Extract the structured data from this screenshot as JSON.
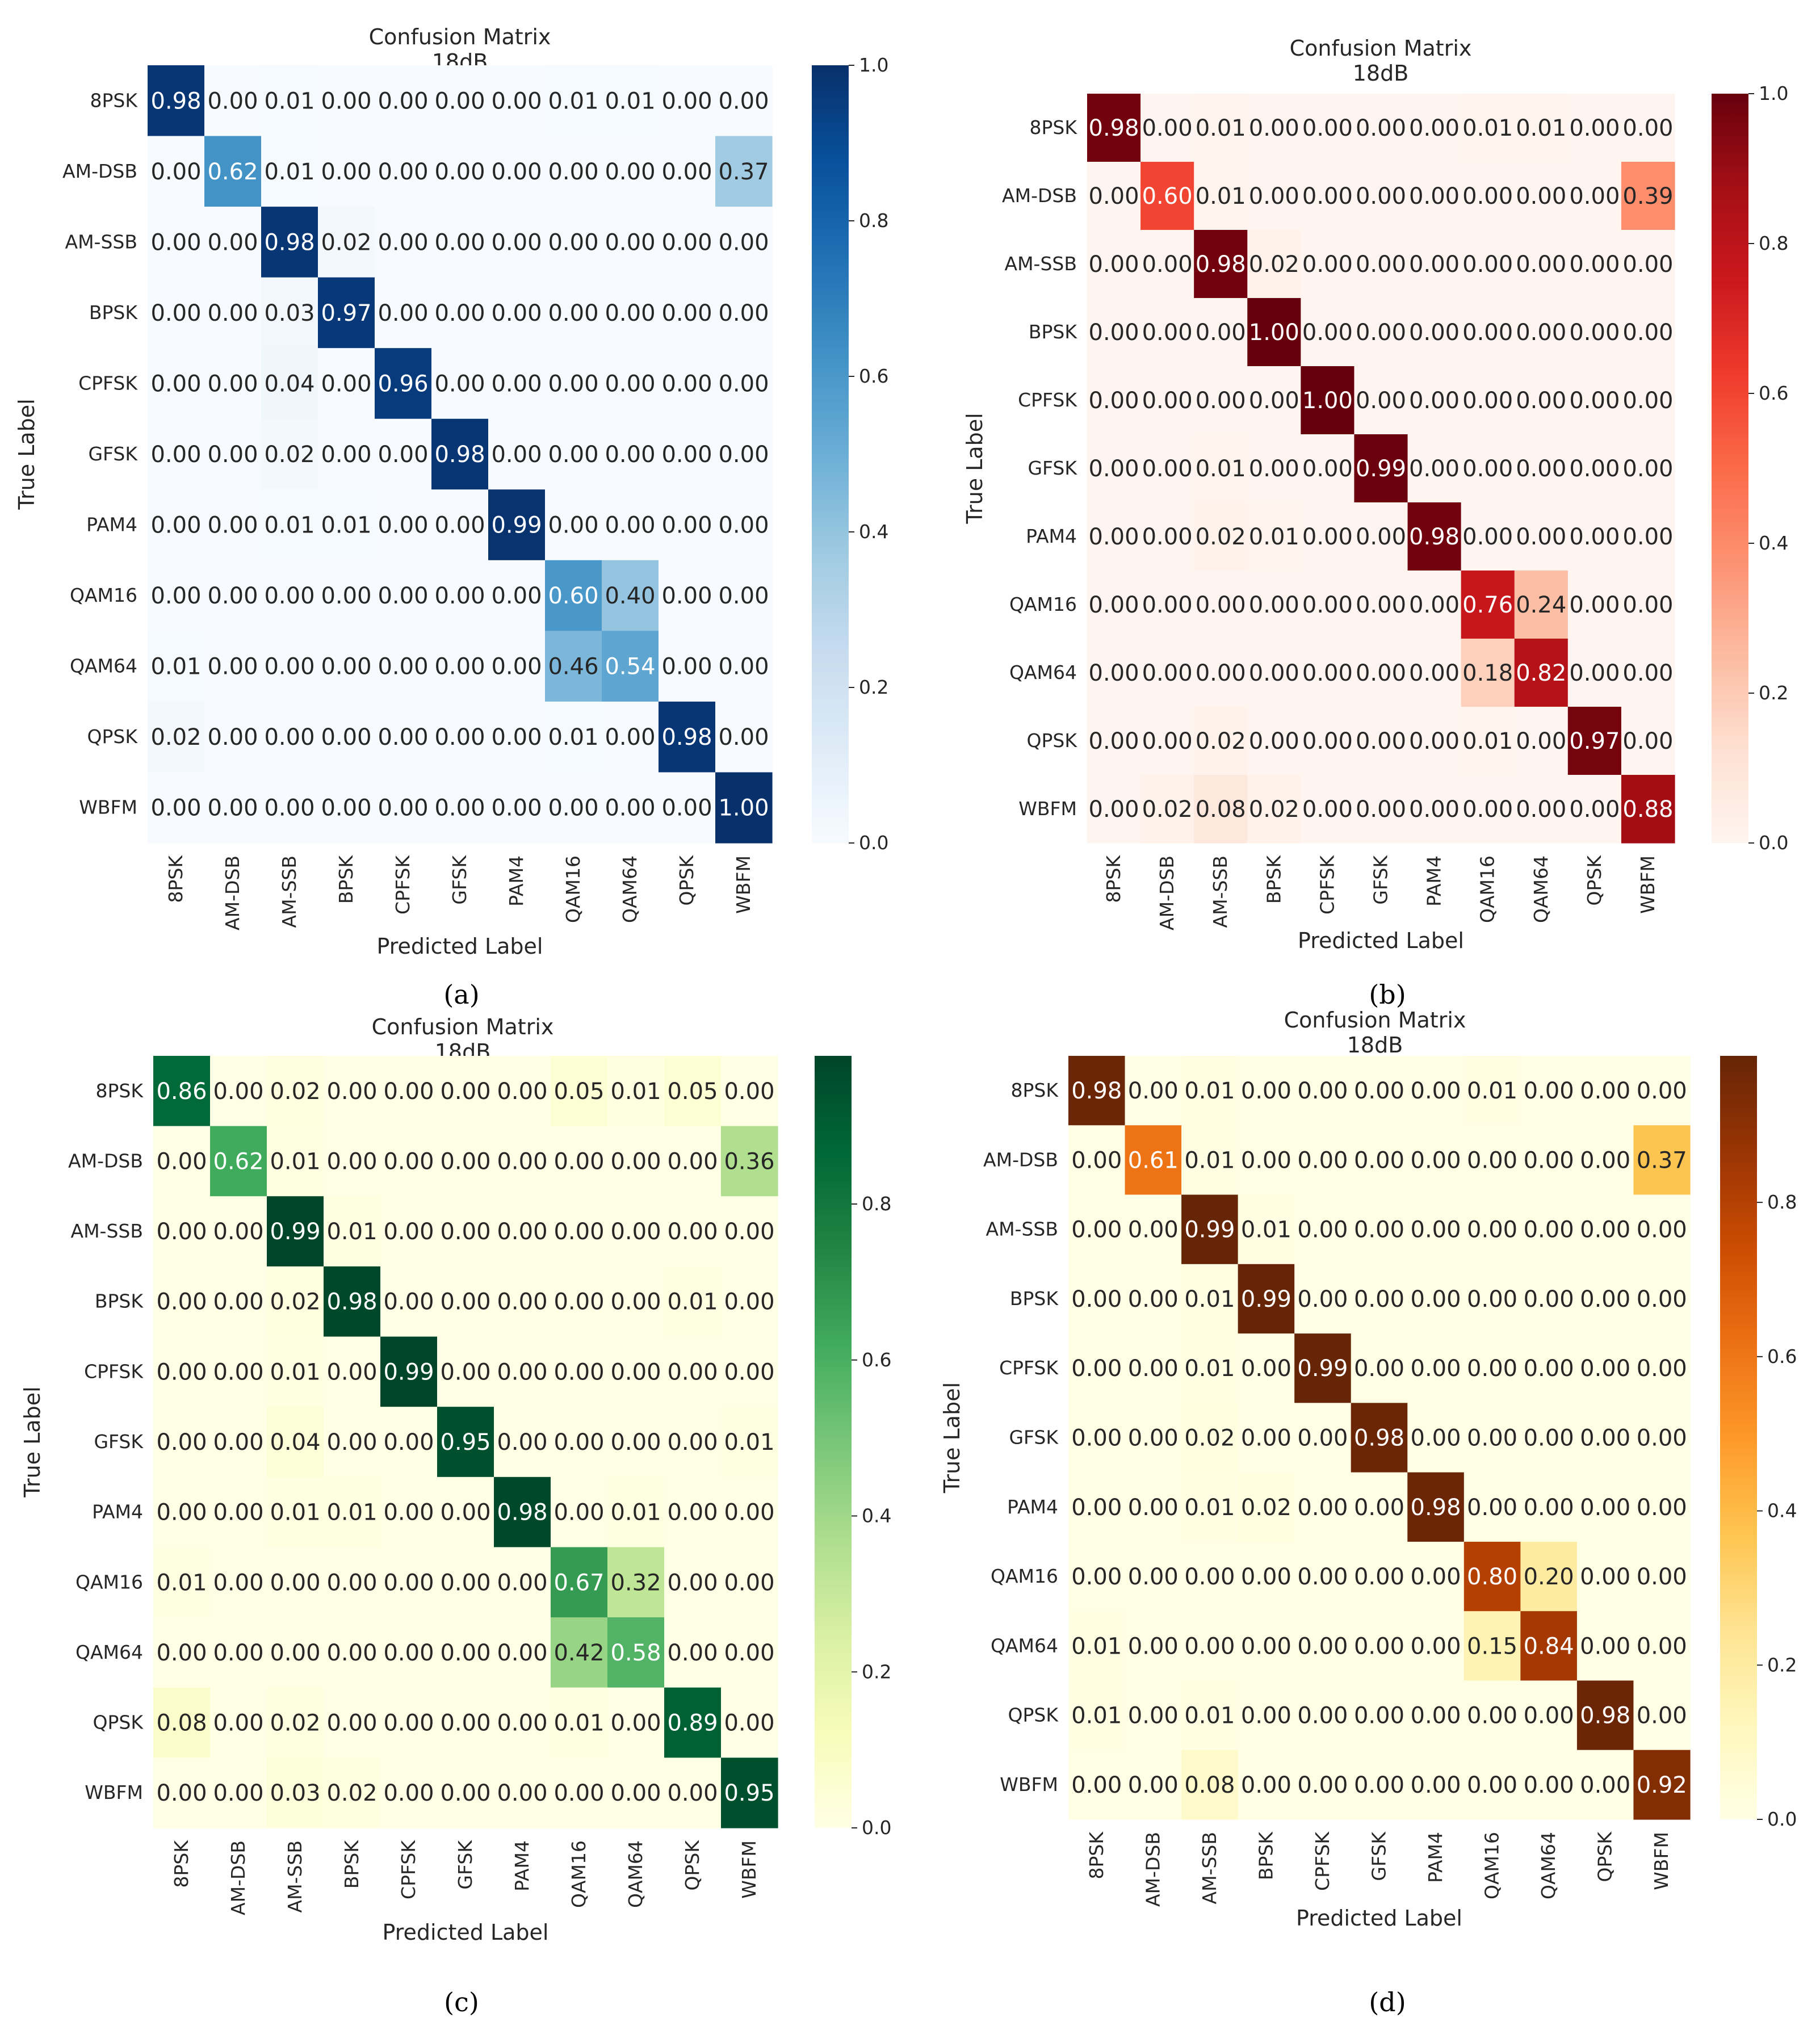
{
  "panel_labels": [
    "(a)",
    "(b)",
    "(c)",
    "(d)"
  ],
  "chart_data": [
    {
      "type": "heatmap",
      "panel": "a",
      "title": "Confusion Matrix\n18dB",
      "xlabel": "Predicted Label",
      "ylabel": "True Label",
      "colormap": "Blues",
      "colors": [
        "#f7fbff",
        "#deebf7",
        "#c6dbef",
        "#9ecae1",
        "#6baed6",
        "#4292c6",
        "#2171b5",
        "#08519c",
        "#08306b"
      ],
      "vmin": 0.0,
      "vmax": 1.0,
      "colorbar_ticks": [
        "0.0",
        "0.2",
        "0.4",
        "0.6",
        "0.8",
        "1.0"
      ],
      "classes": [
        "8PSK",
        "AM-DSB",
        "AM-SSB",
        "BPSK",
        "CPFSK",
        "GFSK",
        "PAM4",
        "QAM16",
        "QAM64",
        "QPSK",
        "WBFM"
      ],
      "values": [
        [
          0.98,
          0.0,
          0.01,
          0.0,
          0.0,
          0.0,
          0.0,
          0.01,
          0.01,
          0.0,
          0.0
        ],
        [
          0.0,
          0.62,
          0.01,
          0.0,
          0.0,
          0.0,
          0.0,
          0.0,
          0.0,
          0.0,
          0.37
        ],
        [
          0.0,
          0.0,
          0.98,
          0.02,
          0.0,
          0.0,
          0.0,
          0.0,
          0.0,
          0.0,
          0.0
        ],
        [
          0.0,
          0.0,
          0.03,
          0.97,
          0.0,
          0.0,
          0.0,
          0.0,
          0.0,
          0.0,
          0.0
        ],
        [
          0.0,
          0.0,
          0.04,
          0.0,
          0.96,
          0.0,
          0.0,
          0.0,
          0.0,
          0.0,
          0.0
        ],
        [
          0.0,
          0.0,
          0.02,
          0.0,
          0.0,
          0.98,
          0.0,
          0.0,
          0.0,
          0.0,
          0.0
        ],
        [
          0.0,
          0.0,
          0.01,
          0.01,
          0.0,
          0.0,
          0.99,
          0.0,
          0.0,
          0.0,
          0.0
        ],
        [
          0.0,
          0.0,
          0.0,
          0.0,
          0.0,
          0.0,
          0.0,
          0.6,
          0.4,
          0.0,
          0.0
        ],
        [
          0.01,
          0.0,
          0.0,
          0.0,
          0.0,
          0.0,
          0.0,
          0.46,
          0.54,
          0.0,
          0.0
        ],
        [
          0.02,
          0.0,
          0.0,
          0.0,
          0.0,
          0.0,
          0.0,
          0.01,
          0.0,
          0.98,
          0.0
        ],
        [
          0.0,
          0.0,
          0.0,
          0.0,
          0.0,
          0.0,
          0.0,
          0.0,
          0.0,
          0.0,
          1.0
        ]
      ]
    },
    {
      "type": "heatmap",
      "panel": "b",
      "title": "Confusion Matrix\n18dB",
      "xlabel": "Predicted Label",
      "ylabel": "True Label",
      "colormap": "Reds",
      "colors": [
        "#fff5f0",
        "#fee0d2",
        "#fcbba1",
        "#fc9272",
        "#fb6a4a",
        "#ef3b2c",
        "#cb181d",
        "#a50f15",
        "#67000d"
      ],
      "vmin": 0.0,
      "vmax": 1.0,
      "colorbar_ticks": [
        "0.0",
        "0.2",
        "0.4",
        "0.6",
        "0.8",
        "1.0"
      ],
      "classes": [
        "8PSK",
        "AM-DSB",
        "AM-SSB",
        "BPSK",
        "CPFSK",
        "GFSK",
        "PAM4",
        "QAM16",
        "QAM64",
        "QPSK",
        "WBFM"
      ],
      "values": [
        [
          0.98,
          0.0,
          0.01,
          0.0,
          0.0,
          0.0,
          0.0,
          0.01,
          0.01,
          0.0,
          0.0
        ],
        [
          0.0,
          0.6,
          0.01,
          0.0,
          0.0,
          0.0,
          0.0,
          0.0,
          0.0,
          0.0,
          0.39
        ],
        [
          0.0,
          0.0,
          0.98,
          0.02,
          0.0,
          0.0,
          0.0,
          0.0,
          0.0,
          0.0,
          0.0
        ],
        [
          0.0,
          0.0,
          0.0,
          1.0,
          0.0,
          0.0,
          0.0,
          0.0,
          0.0,
          0.0,
          0.0
        ],
        [
          0.0,
          0.0,
          0.0,
          0.0,
          1.0,
          0.0,
          0.0,
          0.0,
          0.0,
          0.0,
          0.0
        ],
        [
          0.0,
          0.0,
          0.01,
          0.0,
          0.0,
          0.99,
          0.0,
          0.0,
          0.0,
          0.0,
          0.0
        ],
        [
          0.0,
          0.0,
          0.02,
          0.01,
          0.0,
          0.0,
          0.98,
          0.0,
          0.0,
          0.0,
          0.0
        ],
        [
          0.0,
          0.0,
          0.0,
          0.0,
          0.0,
          0.0,
          0.0,
          0.76,
          0.24,
          0.0,
          0.0
        ],
        [
          0.0,
          0.0,
          0.0,
          0.0,
          0.0,
          0.0,
          0.0,
          0.18,
          0.82,
          0.0,
          0.0
        ],
        [
          0.0,
          0.0,
          0.02,
          0.0,
          0.0,
          0.0,
          0.0,
          0.01,
          0.0,
          0.97,
          0.0
        ],
        [
          0.0,
          0.02,
          0.08,
          0.02,
          0.0,
          0.0,
          0.0,
          0.0,
          0.0,
          0.0,
          0.88
        ]
      ]
    },
    {
      "type": "heatmap",
      "panel": "c",
      "title": "Confusion Matrix\n18dB",
      "xlabel": "Predicted Label",
      "ylabel": "True Label",
      "colormap": "YlGn",
      "colors": [
        "#ffffe5",
        "#f7fcb9",
        "#d9f0a3",
        "#addd8e",
        "#78c679",
        "#41ab5d",
        "#238443",
        "#006837",
        "#004529"
      ],
      "vmin": 0.0,
      "vmax": 0.99,
      "colorbar_ticks": [
        "0.0",
        "0.2",
        "0.4",
        "0.6",
        "0.8"
      ],
      "classes": [
        "8PSK",
        "AM-DSB",
        "AM-SSB",
        "BPSK",
        "CPFSK",
        "GFSK",
        "PAM4",
        "QAM16",
        "QAM64",
        "QPSK",
        "WBFM"
      ],
      "values": [
        [
          0.86,
          0.0,
          0.02,
          0.0,
          0.0,
          0.0,
          0.0,
          0.05,
          0.01,
          0.05,
          0.0
        ],
        [
          0.0,
          0.62,
          0.01,
          0.0,
          0.0,
          0.0,
          0.0,
          0.0,
          0.0,
          0.0,
          0.36
        ],
        [
          0.0,
          0.0,
          0.99,
          0.01,
          0.0,
          0.0,
          0.0,
          0.0,
          0.0,
          0.0,
          0.0
        ],
        [
          0.0,
          0.0,
          0.02,
          0.98,
          0.0,
          0.0,
          0.0,
          0.0,
          0.0,
          0.01,
          0.0
        ],
        [
          0.0,
          0.0,
          0.01,
          0.0,
          0.99,
          0.0,
          0.0,
          0.0,
          0.0,
          0.0,
          0.0
        ],
        [
          0.0,
          0.0,
          0.04,
          0.0,
          0.0,
          0.95,
          0.0,
          0.0,
          0.0,
          0.0,
          0.01
        ],
        [
          0.0,
          0.0,
          0.01,
          0.01,
          0.0,
          0.0,
          0.98,
          0.0,
          0.01,
          0.0,
          0.0
        ],
        [
          0.01,
          0.0,
          0.0,
          0.0,
          0.0,
          0.0,
          0.0,
          0.67,
          0.32,
          0.0,
          0.0
        ],
        [
          0.0,
          0.0,
          0.0,
          0.0,
          0.0,
          0.0,
          0.0,
          0.42,
          0.58,
          0.0,
          0.0
        ],
        [
          0.08,
          0.0,
          0.02,
          0.0,
          0.0,
          0.0,
          0.0,
          0.01,
          0.0,
          0.89,
          0.0
        ],
        [
          0.0,
          0.0,
          0.03,
          0.02,
          0.0,
          0.0,
          0.0,
          0.0,
          0.0,
          0.0,
          0.95
        ]
      ]
    },
    {
      "type": "heatmap",
      "panel": "d",
      "title": "Confusion Matrix\n18dB",
      "xlabel": "Predicted Label",
      "ylabel": "True Label",
      "colormap": "YlOrBr",
      "colors": [
        "#ffffe5",
        "#fff7bc",
        "#fee391",
        "#fec44f",
        "#fe9929",
        "#ec7014",
        "#cc4c02",
        "#993404",
        "#662506"
      ],
      "vmin": 0.0,
      "vmax": 0.99,
      "colorbar_ticks": [
        "0.0",
        "0.2",
        "0.4",
        "0.6",
        "0.8"
      ],
      "classes": [
        "8PSK",
        "AM-DSB",
        "AM-SSB",
        "BPSK",
        "CPFSK",
        "GFSK",
        "PAM4",
        "QAM16",
        "QAM64",
        "QPSK",
        "WBFM"
      ],
      "values": [
        [
          0.98,
          0.0,
          0.01,
          0.0,
          0.0,
          0.0,
          0.0,
          0.01,
          0.0,
          0.0,
          0.0
        ],
        [
          0.0,
          0.61,
          0.01,
          0.0,
          0.0,
          0.0,
          0.0,
          0.0,
          0.0,
          0.0,
          0.37
        ],
        [
          0.0,
          0.0,
          0.99,
          0.01,
          0.0,
          0.0,
          0.0,
          0.0,
          0.0,
          0.0,
          0.0
        ],
        [
          0.0,
          0.0,
          0.01,
          0.99,
          0.0,
          0.0,
          0.0,
          0.0,
          0.0,
          0.0,
          0.0
        ],
        [
          0.0,
          0.0,
          0.01,
          0.0,
          0.99,
          0.0,
          0.0,
          0.0,
          0.0,
          0.0,
          0.0
        ],
        [
          0.0,
          0.0,
          0.02,
          0.0,
          0.0,
          0.98,
          0.0,
          0.0,
          0.0,
          0.0,
          0.0
        ],
        [
          0.0,
          0.0,
          0.01,
          0.02,
          0.0,
          0.0,
          0.98,
          0.0,
          0.0,
          0.0,
          0.0
        ],
        [
          0.0,
          0.0,
          0.0,
          0.0,
          0.0,
          0.0,
          0.0,
          0.8,
          0.2,
          0.0,
          0.0
        ],
        [
          0.01,
          0.0,
          0.0,
          0.0,
          0.0,
          0.0,
          0.0,
          0.15,
          0.84,
          0.0,
          0.0
        ],
        [
          0.01,
          0.0,
          0.01,
          0.0,
          0.0,
          0.0,
          0.0,
          0.0,
          0.0,
          0.98,
          0.0
        ],
        [
          0.0,
          0.0,
          0.08,
          0.0,
          0.0,
          0.0,
          0.0,
          0.0,
          0.0,
          0.0,
          0.92
        ]
      ]
    }
  ]
}
